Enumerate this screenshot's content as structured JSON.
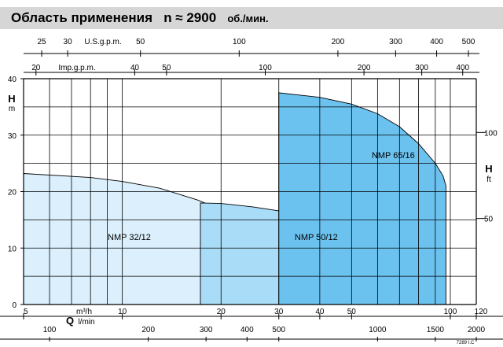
{
  "title": {
    "main": "Область применения",
    "speed_label": "n ≈ 2900",
    "speed_unit": "об./мин."
  },
  "figure_code": "7289 I.C",
  "chart_data": {
    "type": "area",
    "scales": {
      "q_m3h": {
        "scale": "log",
        "range": [
          5,
          120
        ],
        "ticks": [
          5,
          10,
          20,
          30,
          40,
          50,
          100,
          120
        ],
        "label_main": "Q",
        "label_unit": "m³/h"
      },
      "q_lmin": {
        "ticks": [
          100,
          200,
          300,
          400,
          500,
          1000,
          1500,
          2000
        ],
        "label": "l/min"
      },
      "q_usgpm": {
        "ticks": [
          25,
          30,
          50,
          100,
          200,
          300,
          400,
          500
        ],
        "label": "U.S.g.p.m."
      },
      "q_impgpm": {
        "ticks": [
          20,
          40,
          50,
          100,
          200,
          300,
          400
        ],
        "label": "Imp.g.p.m."
      },
      "h_m": {
        "scale": "linear",
        "range": [
          0,
          40
        ],
        "ticks": [
          0,
          10,
          20,
          30,
          40
        ],
        "label_main": "H",
        "label_unit": "m"
      },
      "h_ft": {
        "ticks": [
          50,
          100
        ],
        "label_main": "H",
        "label_unit": "ft"
      }
    },
    "grid": true,
    "series": [
      {
        "name": "NMP 32/12",
        "color": "#dbeffc",
        "label_at": [
          10.5,
          12
        ],
        "points": [
          [
            5,
            23.2
          ],
          [
            8,
            22.5
          ],
          [
            10,
            21.8
          ],
          [
            13,
            20.6
          ],
          [
            17,
            18.5
          ],
          [
            20,
            16.8
          ],
          [
            23,
            14.2
          ],
          [
            24.2,
            12.3
          ],
          [
            24.2,
            0
          ]
        ]
      },
      {
        "name": "NMP 50/12",
        "color": "#a9dcf7",
        "label_at": [
          39,
          12
        ],
        "points": [
          [
            17.3,
            18
          ],
          [
            20,
            17.9
          ],
          [
            25,
            17.3
          ],
          [
            30,
            16.6
          ],
          [
            36,
            16
          ],
          [
            42,
            14.4
          ],
          [
            48,
            12.5
          ],
          [
            53,
            10.2
          ],
          [
            58,
            7.5
          ],
          [
            59,
            6.7
          ],
          [
            59,
            0
          ]
        ]
      },
      {
        "name": "NMP 65/16",
        "color": "#6cc2ef",
        "label_at": [
          67,
          26.5
        ],
        "points": [
          [
            30,
            37.5
          ],
          [
            40,
            36.7
          ],
          [
            50,
            35.5
          ],
          [
            60,
            33.8
          ],
          [
            70,
            31.5
          ],
          [
            80,
            28.5
          ],
          [
            90,
            25
          ],
          [
            95,
            22.8
          ],
          [
            97,
            21
          ],
          [
            97,
            0
          ]
        ]
      }
    ]
  }
}
